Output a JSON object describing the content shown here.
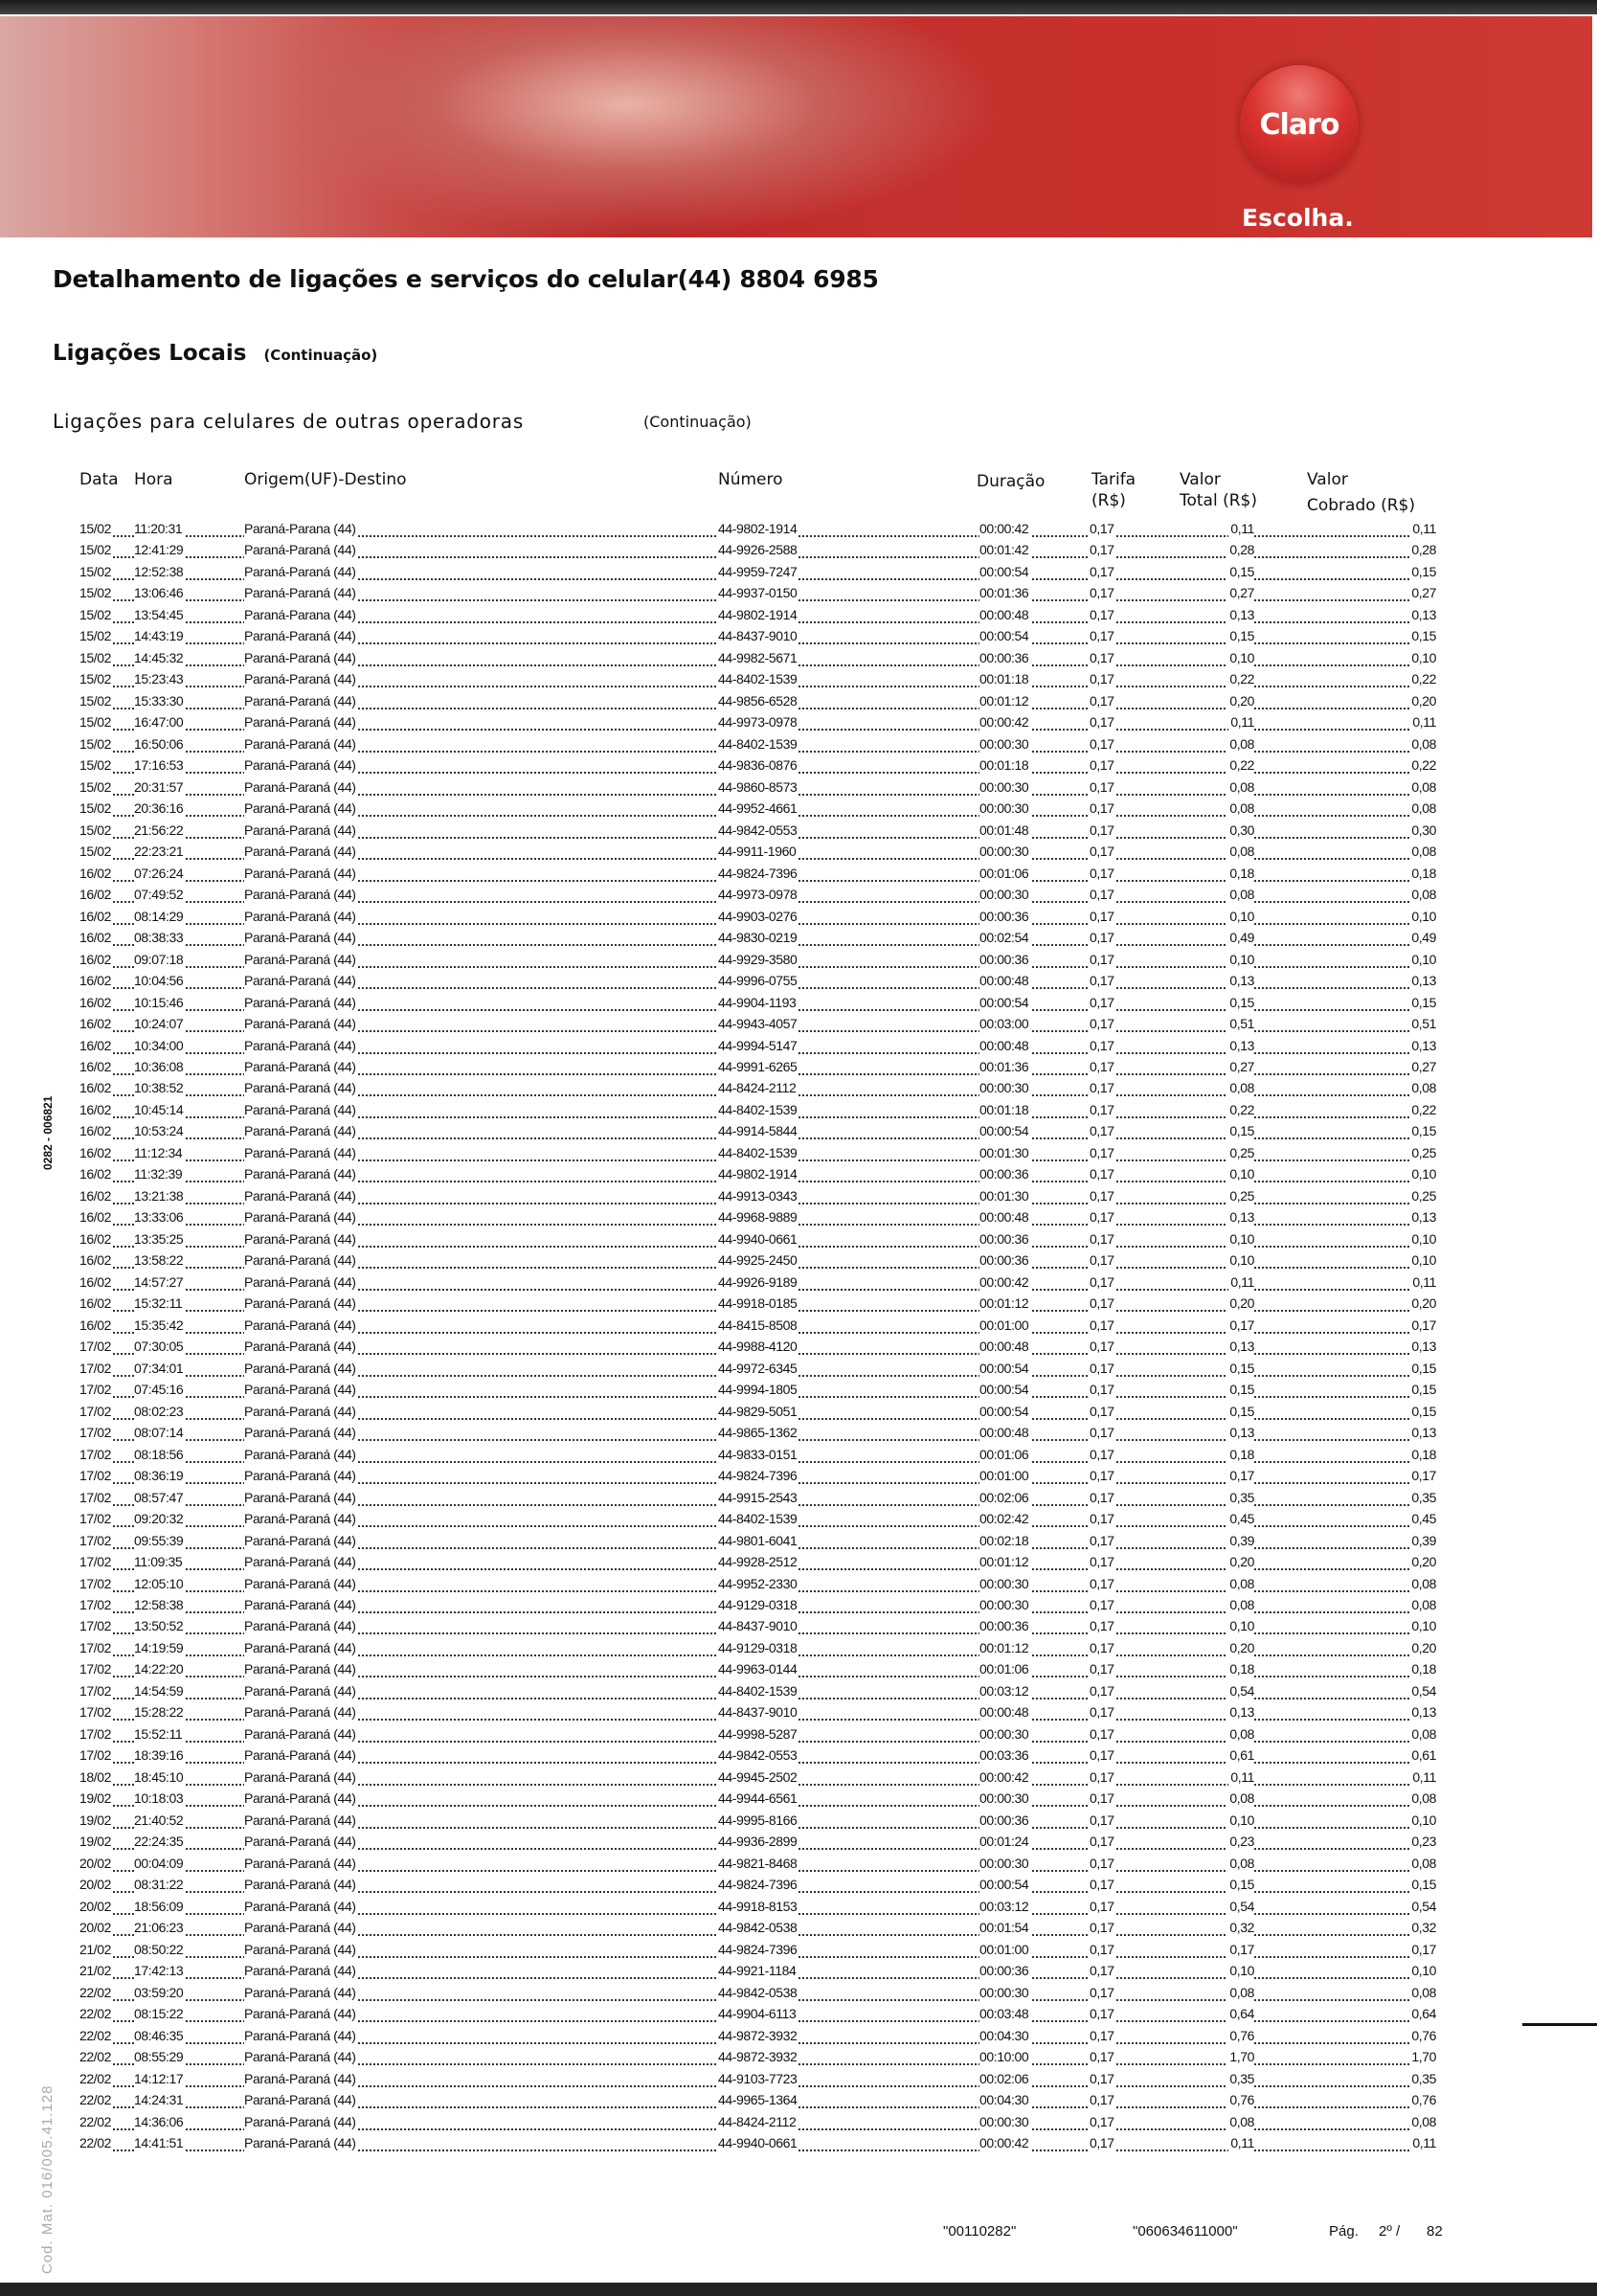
{
  "brand": {
    "logo": "Claro",
    "tagline": "Escolha.",
    "color": "#c9302c"
  },
  "title": "Detalhamento de ligações e serviços do celular(44) 8804 6985",
  "section": {
    "label": "Ligações Locais",
    "note": "(Continuação)"
  },
  "subsection": {
    "label": "Ligações para celulares de outras operadoras",
    "note": "(Continuação)"
  },
  "columns": {
    "data": "Data",
    "hora": "Hora",
    "origem": "Origem(UF)-Destino",
    "numero": "Número",
    "duracao": "Duração",
    "tarifa_1": "Tarifa",
    "tarifa_2": "(R$)",
    "valor_total_1": "Valor",
    "valor_total_2": "Total (R$)",
    "valor_cobrado_1": "Valor",
    "valor_cobrado_2": "Cobrado (R$)"
  },
  "rows": [
    [
      "15/02",
      "11:20:31",
      "Paraná-Parana (44)",
      "44-9802-1914",
      "00:00:42",
      "0,17",
      "0,11",
      "0,11"
    ],
    [
      "15/02",
      "12:41:29",
      "Paraná-Paraná (44)",
      "44-9926-2588",
      "00:01:42",
      "0,17",
      "0,28",
      "0,28"
    ],
    [
      "15/02",
      "12:52:38",
      "Paraná-Paraná (44)",
      "44-9959-7247",
      "00:00:54",
      "0,17",
      "0,15",
      "0,15"
    ],
    [
      "15/02",
      "13:06:46",
      "Paraná-Paraná (44)",
      "44-9937-0150",
      "00:01:36",
      "0,17",
      "0,27",
      "0,27"
    ],
    [
      "15/02",
      "13:54:45",
      "Paraná-Parana (44)",
      "44-9802-1914",
      "00:00:48",
      "0,17",
      "0,13",
      "0,13"
    ],
    [
      "15/02",
      "14:43:19",
      "Paraná-Paraná (44)",
      "44-8437-9010",
      "00:00:54",
      "0,17",
      "0,15",
      "0,15"
    ],
    [
      "15/02",
      "14:45:32",
      "Paraná-Paraná (44)",
      "44-9982-5671",
      "00:00:36",
      "0,17",
      "0,10",
      "0,10"
    ],
    [
      "15/02",
      "15:23:43",
      "Paraná-Paraná (44)",
      "44-8402-1539",
      "00:01:18",
      "0,17",
      "0,22",
      "0,22"
    ],
    [
      "15/02",
      "15:33:30",
      "Paraná-Paraná (44)",
      "44-9856-6528",
      "00:01:12",
      "0,17",
      "0,20",
      "0,20"
    ],
    [
      "15/02",
      "16:47:00",
      "Paraná-Paraná (44)",
      "44-9973-0978",
      "00:00:42",
      "0,17",
      "0,11",
      "0,11"
    ],
    [
      "15/02",
      "16:50:06",
      "Paraná-Paraná (44)",
      "44-8402-1539",
      "00:00:30",
      "0,17",
      "0,08",
      "0,08"
    ],
    [
      "15/02",
      "17:16:53",
      "Paraná-Paraná (44)",
      "44-9836-0876",
      "00:01:18",
      "0,17",
      "0,22",
      "0,22"
    ],
    [
      "15/02",
      "20:31:57",
      "Paraná-Paraná (44)",
      "44-9860-8573",
      "00:00:30",
      "0,17",
      "0,08",
      "0,08"
    ],
    [
      "15/02",
      "20:36:16",
      "Paraná-Paraná (44)",
      "44-9952-4661",
      "00:00:30",
      "0,17",
      "0,08",
      "0,08"
    ],
    [
      "15/02",
      "21:56:22",
      "Paraná-Paraná (44)",
      "44-9842-0553",
      "00:01:48",
      "0,17",
      "0,30",
      "0,30"
    ],
    [
      "15/02",
      "22:23:21",
      "Paraná-Paraná (44)",
      "44-9911-1960",
      "00:00:30",
      "0,17",
      "0,08",
      "0,08"
    ],
    [
      "16/02",
      "07:26:24",
      "Paraná-Paraná (44)",
      "44-9824-7396",
      "00:01:06",
      "0,17",
      "0,18",
      "0,18"
    ],
    [
      "16/02",
      "07:49:52",
      "Paraná-Paraná (44)",
      "44-9973-0978",
      "00:00:30",
      "0,17",
      "0,08",
      "0,08"
    ],
    [
      "16/02",
      "08:14:29",
      "Paraná-Paraná (44)",
      "44-9903-0276",
      "00:00:36",
      "0,17",
      "0,10",
      "0,10"
    ],
    [
      "16/02",
      "08:38:33",
      "Paraná-Paraná (44)",
      "44-9830-0219",
      "00:02:54",
      "0,17",
      "0,49",
      "0,49"
    ],
    [
      "16/02",
      "09:07:18",
      "Paraná-Paraná (44)",
      "44-9929-3580",
      "00:00:36",
      "0,17",
      "0,10",
      "0,10"
    ],
    [
      "16/02",
      "10:04:56",
      "Paraná-Paraná (44)",
      "44-9996-0755",
      "00:00:48",
      "0,17",
      "0,13",
      "0,13"
    ],
    [
      "16/02",
      "10:15:46",
      "Paraná-Paraná (44)",
      "44-9904-1193",
      "00:00:54",
      "0,17",
      "0,15",
      "0,15"
    ],
    [
      "16/02",
      "10:24:07",
      "Paraná-Paraná (44)",
      "44-9943-4057",
      "00:03:00",
      "0,17",
      "0,51",
      "0,51"
    ],
    [
      "16/02",
      "10:34:00",
      "Paraná-Paraná (44)",
      "44-9994-5147",
      "00:00:48",
      "0,17",
      "0,13",
      "0,13"
    ],
    [
      "16/02",
      "10:36:08",
      "Paraná-Paraná (44)",
      "44-9991-6265",
      "00:01:36",
      "0,17",
      "0,27",
      "0,27"
    ],
    [
      "16/02",
      "10:38:52",
      "Paraná-Paraná (44)",
      "44-8424-2112",
      "00:00:30",
      "0,17",
      "0,08",
      "0,08"
    ],
    [
      "16/02",
      "10:45:14",
      "Paraná-Paraná (44)",
      "44-8402-1539",
      "00:01:18",
      "0,17",
      "0,22",
      "0,22"
    ],
    [
      "16/02",
      "10:53:24",
      "Paraná-Paraná (44)",
      "44-9914-5844",
      "00:00:54",
      "0,17",
      "0,15",
      "0,15"
    ],
    [
      "16/02",
      "11:12:34",
      "Paraná-Paraná (44)",
      "44-8402-1539",
      "00:01:30",
      "0,17",
      "0,25",
      "0,25"
    ],
    [
      "16/02",
      "11:32:39",
      "Paraná-Paraná (44)",
      "44-9802-1914",
      "00:00:36",
      "0,17",
      "0,10",
      "0,10"
    ],
    [
      "16/02",
      "13:21:38",
      "Paraná-Paraná (44)",
      "44-9913-0343",
      "00:01:30",
      "0,17",
      "0,25",
      "0,25"
    ],
    [
      "16/02",
      "13:33:06",
      "Paraná-Paraná (44)",
      "44-9968-9889",
      "00:00:48",
      "0,17",
      "0,13",
      "0,13"
    ],
    [
      "16/02",
      "13:35:25",
      "Paraná-Paraná (44)",
      "44-9940-0661",
      "00:00:36",
      "0,17",
      "0,10",
      "0,10"
    ],
    [
      "16/02",
      "13:58:22",
      "Paraná-Paraná (44)",
      "44-9925-2450",
      "00:00:36",
      "0,17",
      "0,10",
      "0,10"
    ],
    [
      "16/02",
      "14:57:27",
      "Paraná-Paraná (44)",
      "44-9926-9189",
      "00:00:42",
      "0,17",
      "0,11",
      "0,11"
    ],
    [
      "16/02",
      "15:32:11",
      "Paraná-Paraná (44)",
      "44-9918-0185",
      "00:01:12",
      "0,17",
      "0,20",
      "0,20"
    ],
    [
      "16/02",
      "15:35:42",
      "Paraná-Paraná (44)",
      "44-8415-8508",
      "00:01:00",
      "0,17",
      "0,17",
      "0,17"
    ],
    [
      "17/02",
      "07:30:05",
      "Paraná-Paraná (44)",
      "44-9988-4120",
      "00:00:48",
      "0,17",
      "0,13",
      "0,13"
    ],
    [
      "17/02",
      "07:34:01",
      "Paraná-Paraná (44)",
      "44-9972-6345",
      "00:00:54",
      "0,17",
      "0,15",
      "0,15"
    ],
    [
      "17/02",
      "07:45:16",
      "Paraná-Paraná (44)",
      "44-9994-1805",
      "00:00:54",
      "0,17",
      "0,15",
      "0,15"
    ],
    [
      "17/02",
      "08:02:23",
      "Paraná-Paraná (44)",
      "44-9829-5051",
      "00:00:54",
      "0,17",
      "0,15",
      "0,15"
    ],
    [
      "17/02",
      "08:07:14",
      "Paraná-Paraná (44)",
      "44-9865-1362",
      "00:00:48",
      "0,17",
      "0,13",
      "0,13"
    ],
    [
      "17/02",
      "08:18:56",
      "Paraná-Paraná (44)",
      "44-9833-0151",
      "00:01:06",
      "0,17",
      "0,18",
      "0,18"
    ],
    [
      "17/02",
      "08:36:19",
      "Paraná-Paraná (44)",
      "44-9824-7396",
      "00:01:00",
      "0,17",
      "0,17",
      "0,17"
    ],
    [
      "17/02",
      "08:57:47",
      "Paraná-Paraná (44)",
      "44-9915-2543",
      "00:02:06",
      "0,17",
      "0,35",
      "0,35"
    ],
    [
      "17/02",
      "09:20:32",
      "Paraná-Paraná (44)",
      "44-8402-1539",
      "00:02:42",
      "0,17",
      "0,45",
      "0,45"
    ],
    [
      "17/02",
      "09:55:39",
      "Paraná-Paraná (44)",
      "44-9801-6041",
      "00:02:18",
      "0,17",
      "0,39",
      "0,39"
    ],
    [
      "17/02",
      "11:09:35",
      "Paraná-Paraná (44)",
      "44-9928-2512",
      "00:01:12",
      "0,17",
      "0,20",
      "0,20"
    ],
    [
      "17/02",
      "12:05:10",
      "Paraná-Paraná (44)",
      "44-9952-2330",
      "00:00:30",
      "0,17",
      "0,08",
      "0,08"
    ],
    [
      "17/02",
      "12:58:38",
      "Paraná-Paraná (44)",
      "44-9129-0318",
      "00:00:30",
      "0,17",
      "0,08",
      "0,08"
    ],
    [
      "17/02",
      "13:50:52",
      "Paraná-Paraná (44)",
      "44-8437-9010",
      "00:00:36",
      "0,17",
      "0,10",
      "0,10"
    ],
    [
      "17/02",
      "14:19:59",
      "Paraná-Paraná (44)",
      "44-9129-0318",
      "00:01:12",
      "0,17",
      "0,20",
      "0,20"
    ],
    [
      "17/02",
      "14:22:20",
      "Paraná-Paraná (44)",
      "44-9963-0144",
      "00:01:06",
      "0,17",
      "0,18",
      "0,18"
    ],
    [
      "17/02",
      "14:54:59",
      "Paraná-Paraná (44)",
      "44-8402-1539",
      "00:03:12",
      "0,17",
      "0,54",
      "0,54"
    ],
    [
      "17/02",
      "15:28:22",
      "Paraná-Paraná (44)",
      "44-8437-9010",
      "00:00:48",
      "0,17",
      "0,13",
      "0,13"
    ],
    [
      "17/02",
      "15:52:11",
      "Paraná-Paraná (44)",
      "44-9998-5287",
      "00:00:30",
      "0,17",
      "0,08",
      "0,08"
    ],
    [
      "17/02",
      "18:39:16",
      "Paraná-Paraná (44)",
      "44-9842-0553",
      "00:03:36",
      "0,17",
      "0,61",
      "0,61"
    ],
    [
      "18/02",
      "18:45:10",
      "Paraná-Paraná (44)",
      "44-9945-2502",
      "00:00:42",
      "0,17",
      "0,11",
      "0,11"
    ],
    [
      "19/02",
      "10:18:03",
      "Paraná-Paraná (44)",
      "44-9944-6561",
      "00:00:30",
      "0,17",
      "0,08",
      "0,08"
    ],
    [
      "19/02",
      "21:40:52",
      "Paraná-Paraná (44)",
      "44-9995-8166",
      "00:00:36",
      "0,17",
      "0,10",
      "0,10"
    ],
    [
      "19/02",
      "22:24:35",
      "Paraná-Paraná (44)",
      "44-9936-2899",
      "00:01:24",
      "0,17",
      "0,23",
      "0,23"
    ],
    [
      "20/02",
      "00:04:09",
      "Paraná-Paraná (44)",
      "44-9821-8468",
      "00:00:30",
      "0,17",
      "0,08",
      "0,08"
    ],
    [
      "20/02",
      "08:31:22",
      "Paraná-Paraná (44)",
      "44-9824-7396",
      "00:00:54",
      "0,17",
      "0,15",
      "0,15"
    ],
    [
      "20/02",
      "18:56:09",
      "Paraná-Paraná (44)",
      "44-9918-8153",
      "00:03:12",
      "0,17",
      "0,54",
      "0,54"
    ],
    [
      "20/02",
      "21:06:23",
      "Paraná-Paraná (44)",
      "44-9842-0538",
      "00:01:54",
      "0,17",
      "0,32",
      "0,32"
    ],
    [
      "21/02",
      "08:50:22",
      "Paraná-Paraná (44)",
      "44-9824-7396",
      "00:01:00",
      "0,17",
      "0,17",
      "0,17"
    ],
    [
      "21/02",
      "17:42:13",
      "Paraná-Paraná (44)",
      "44-9921-1184",
      "00:00:36",
      "0,17",
      "0,10",
      "0,10"
    ],
    [
      "22/02",
      "03:59:20",
      "Paraná-Paraná (44)",
      "44-9842-0538",
      "00:00:30",
      "0,17",
      "0,08",
      "0,08"
    ],
    [
      "22/02",
      "08:15:22",
      "Paraná-Paraná (44)",
      "44-9904-6113",
      "00:03:48",
      "0,17",
      "0,64",
      "0,64"
    ],
    [
      "22/02",
      "08:46:35",
      "Paraná-Paraná (44)",
      "44-9872-3932",
      "00:04:30",
      "0,17",
      "0,76",
      "0,76"
    ],
    [
      "22/02",
      "08:55:29",
      "Paraná-Paraná (44)",
      "44-9872-3932",
      "00:10:00",
      "0,17",
      "1,70",
      "1,70"
    ],
    [
      "22/02",
      "14:12:17",
      "Paraná-Paraná (44)",
      "44-9103-7723",
      "00:02:06",
      "0,17",
      "0,35",
      "0,35"
    ],
    [
      "22/02",
      "14:24:31",
      "Paraná-Paraná (44)",
      "44-9965-1364",
      "00:04:30",
      "0,17",
      "0,76",
      "0,76"
    ],
    [
      "22/02",
      "14:36:06",
      "Paraná-Paraná (44)",
      "44-8424-2112",
      "00:00:30",
      "0,17",
      "0,08",
      "0,08"
    ],
    [
      "22/02",
      "14:41:51",
      "Paraná-Paraná (44)",
      "44-9940-0661",
      "00:00:42",
      "0,17",
      "0,11",
      "0,11"
    ]
  ],
  "footer": {
    "code1": "\"00110282\"",
    "code2": "\"060634611000\"",
    "page_label": "Pág.",
    "page": "2º /",
    "total": "82"
  },
  "margin": {
    "batch": "0282 - 006821",
    "material": "Cod. Mat. 016/005.41.128"
  }
}
